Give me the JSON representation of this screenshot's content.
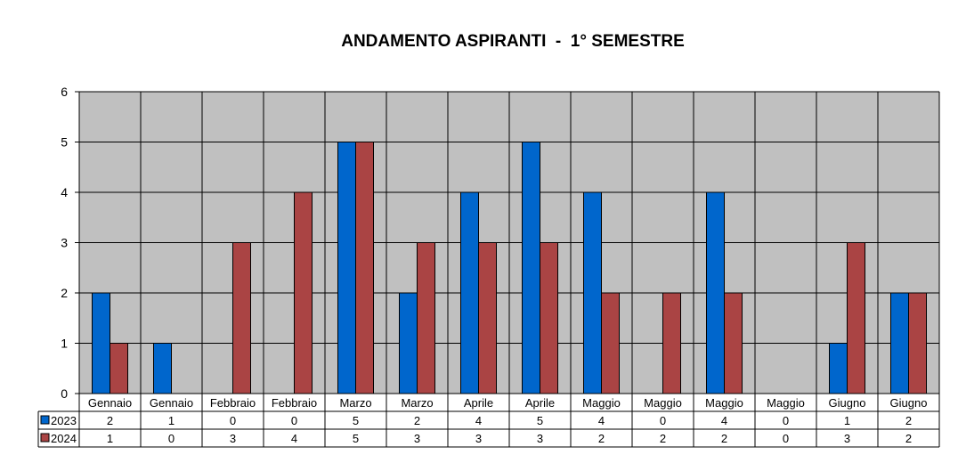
{
  "chart_data": {
    "type": "bar",
    "title": "ANDAMENTO ASPIRANTI  -  1° SEMESTRE",
    "categories": [
      "Gennaio",
      "Gennaio",
      "Febbraio",
      "Febbraio",
      "Marzo",
      "Marzo",
      "Aprile",
      "Aprile",
      "Maggio",
      "Maggio",
      "Maggio",
      "Maggio",
      "Giugno",
      "Giugno"
    ],
    "series": [
      {
        "name": "2023",
        "color": "#0066cc",
        "values": [
          2,
          1,
          0,
          0,
          5,
          2,
          4,
          5,
          4,
          0,
          4,
          0,
          1,
          2
        ]
      },
      {
        "name": "2024",
        "color": "#aa4444",
        "values": [
          1,
          0,
          3,
          4,
          5,
          3,
          3,
          3,
          2,
          2,
          2,
          0,
          3,
          2
        ]
      }
    ],
    "ylim": [
      0,
      6
    ],
    "yticks": [
      0,
      1,
      2,
      3,
      4,
      5,
      6
    ],
    "grid": true,
    "legend": "data table"
  }
}
